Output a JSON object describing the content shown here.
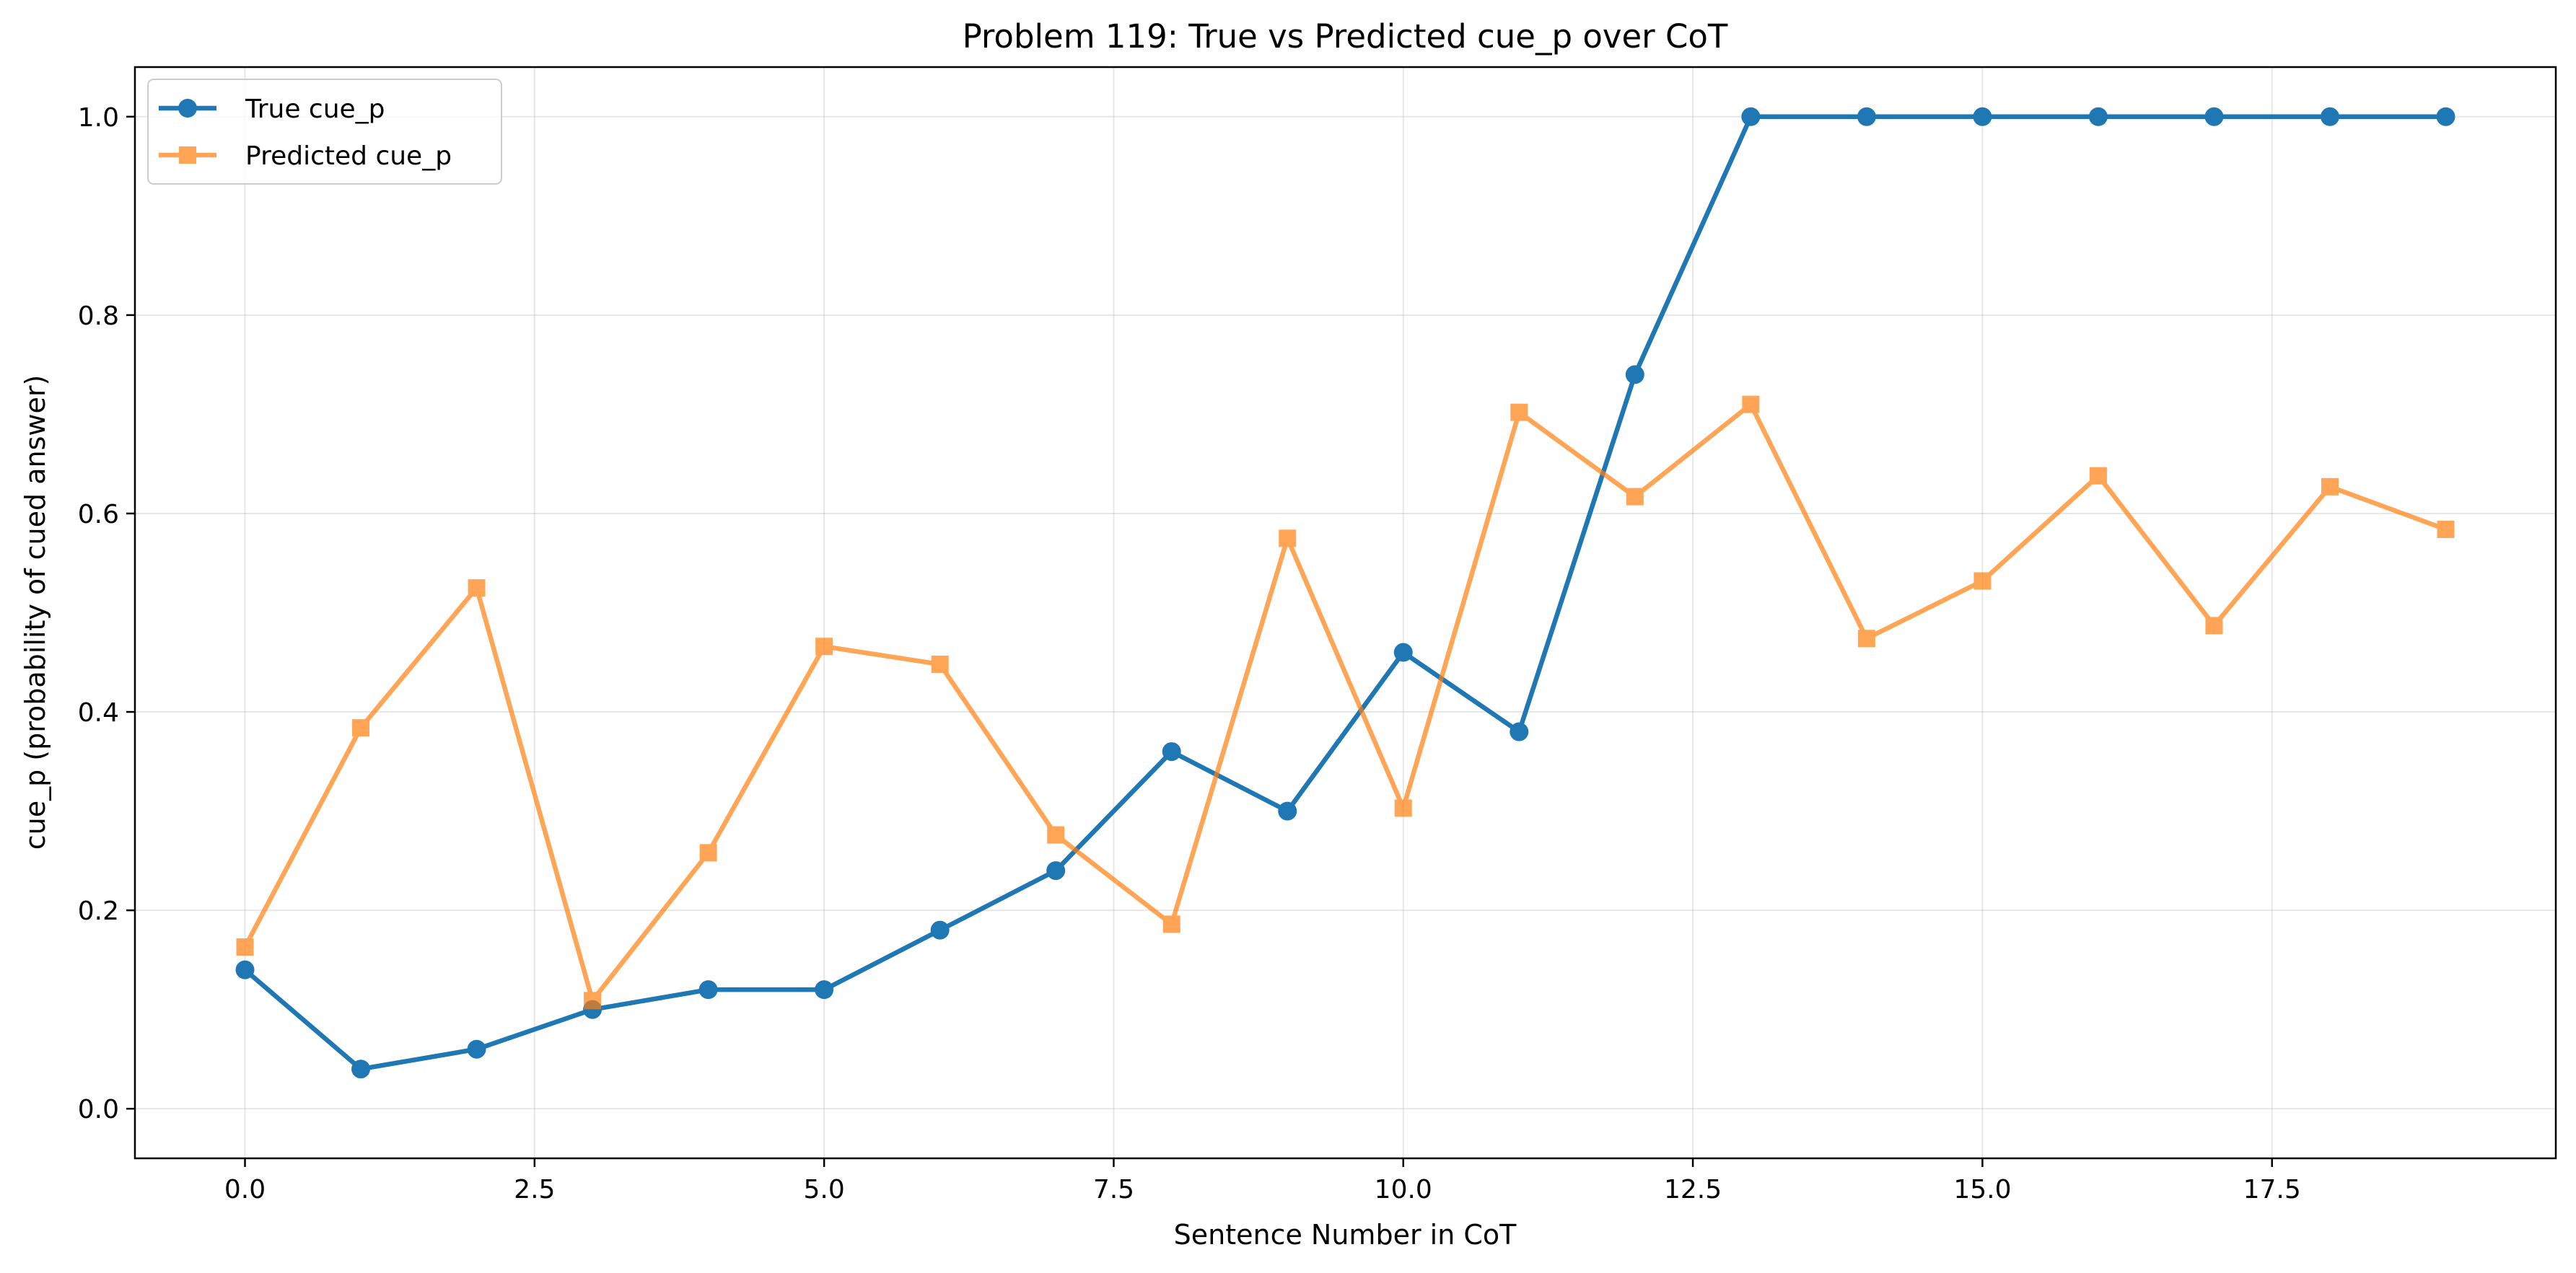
{
  "chart_data": {
    "type": "line",
    "title": "Problem 119: True vs Predicted cue_p over CoT",
    "xlabel": "Sentence Number in CoT",
    "ylabel": "cue_p (probability of cued answer)",
    "xlim": [
      -0.95,
      19.95
    ],
    "ylim": [
      -0.05,
      1.05
    ],
    "xticks": [
      0.0,
      2.5,
      5.0,
      7.5,
      10.0,
      12.5,
      15.0,
      17.5
    ],
    "xtick_labels": [
      "0.0",
      "2.5",
      "5.0",
      "7.5",
      "10.0",
      "12.5",
      "15.0",
      "17.5"
    ],
    "yticks": [
      0.0,
      0.2,
      0.4,
      0.6,
      0.8,
      1.0
    ],
    "ytick_labels": [
      "0.0",
      "0.2",
      "0.4",
      "0.6",
      "0.8",
      "1.0"
    ],
    "grid": true,
    "legend_position": "top-left",
    "x": [
      0,
      1,
      2,
      3,
      4,
      5,
      6,
      7,
      8,
      9,
      10,
      11,
      12,
      13,
      14,
      15,
      16,
      17,
      18,
      19
    ],
    "series": [
      {
        "name": "True cue_p",
        "marker": "circle",
        "color": "#1f77b4",
        "values": [
          0.14,
          0.04,
          0.06,
          0.1,
          0.12,
          0.12,
          0.18,
          0.24,
          0.36,
          0.3,
          0.46,
          0.38,
          0.74,
          1.0,
          1.0,
          1.0,
          1.0,
          1.0,
          1.0,
          1.0
        ]
      },
      {
        "name": "Predicted cue_p",
        "marker": "square",
        "color": "#ff7f0e",
        "values": [
          0.163,
          0.384,
          0.525,
          0.109,
          0.258,
          0.466,
          0.448,
          0.276,
          0.186,
          0.575,
          0.303,
          0.702,
          0.617,
          0.71,
          0.474,
          0.532,
          0.638,
          0.487,
          0.627,
          0.584
        ]
      }
    ]
  }
}
